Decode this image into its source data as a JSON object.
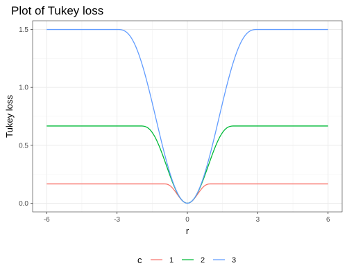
{
  "chart_data": {
    "type": "line",
    "title": "Plot of Tukey loss",
    "xlabel": "r",
    "ylabel": "Tukey loss",
    "xlim": [
      -6.6,
      6.6
    ],
    "ylim": [
      -0.075,
      1.575
    ],
    "x_ticks": [
      -6,
      -3,
      0,
      3,
      6
    ],
    "x_tick_labels": [
      "-6",
      "-3",
      "0",
      "3",
      "6"
    ],
    "y_ticks": [
      0.0,
      0.5,
      1.0,
      1.5
    ],
    "y_tick_labels": [
      "0.0",
      "0.5",
      "1.0",
      "1.5"
    ],
    "grid": true,
    "legend_title": "c",
    "legend_position": "bottom",
    "series": [
      {
        "name": "1",
        "c": 1,
        "color": "#F8766D",
        "x": [
          -6,
          -3,
          -2,
          -1.5,
          -1,
          -0.75,
          -0.5,
          -0.25,
          0,
          0.25,
          0.5,
          0.75,
          1,
          1.5,
          2,
          3,
          6
        ],
        "y": [
          0.167,
          0.167,
          0.167,
          0.167,
          0.167,
          0.144,
          0.095,
          0.03,
          0,
          0.03,
          0.095,
          0.144,
          0.167,
          0.167,
          0.167,
          0.167,
          0.167
        ]
      },
      {
        "name": "2",
        "c": 2,
        "color": "#00BA38",
        "x": [
          -6,
          -3,
          -2,
          -1.75,
          -1.5,
          -1.25,
          -1,
          -0.75,
          -0.5,
          -0.25,
          0,
          0.25,
          0.5,
          0.75,
          1,
          1.25,
          1.5,
          1.75,
          2,
          3,
          6
        ],
        "y": [
          0.667,
          0.667,
          0.667,
          0.66,
          0.619,
          0.546,
          0.443,
          0.318,
          0.176,
          0.046,
          0,
          0.046,
          0.176,
          0.318,
          0.443,
          0.546,
          0.619,
          0.66,
          0.667,
          0.667,
          0.667
        ]
      },
      {
        "name": "3",
        "c": 3,
        "color": "#619CFF",
        "x": [
          -6,
          -4,
          -3,
          -2.75,
          -2.5,
          -2.25,
          -2,
          -1.75,
          -1.5,
          -1.25,
          -1,
          -0.75,
          -0.5,
          -0.25,
          0,
          0.25,
          0.5,
          0.75,
          1,
          1.25,
          1.5,
          1.75,
          2,
          2.25,
          2.5,
          2.75,
          3,
          4,
          6
        ],
        "y": [
          1.5,
          1.5,
          1.5,
          1.494,
          1.461,
          1.392,
          1.289,
          1.153,
          0.99,
          0.809,
          0.617,
          0.424,
          0.233,
          0.069,
          0,
          0.069,
          0.233,
          0.424,
          0.617,
          0.809,
          0.99,
          1.153,
          1.289,
          1.392,
          1.461,
          1.494,
          1.5,
          1.5,
          1.5
        ]
      }
    ]
  }
}
